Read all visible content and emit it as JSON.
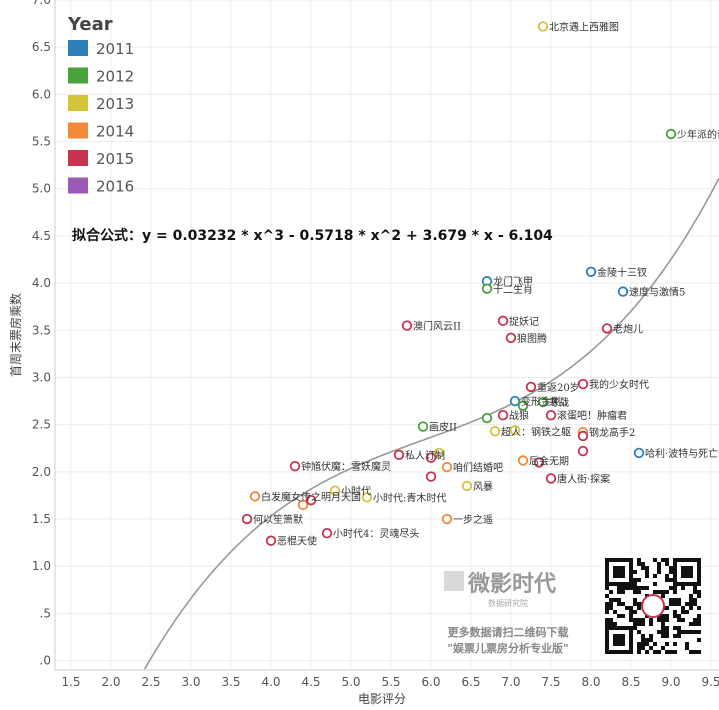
{
  "chart_data": {
    "type": "scatter",
    "xlabel": "电影评分",
    "ylabel": "首周末票房乘数",
    "xlim": [
      1.3,
      9.6
    ],
    "ylim": [
      -0.1,
      7.0
    ],
    "x_ticks": [
      "1.5",
      "2.0",
      "2.5",
      "3.0",
      "3.5",
      "4.0",
      "4.5",
      "5.0",
      "5.5",
      "6.0",
      "6.5",
      "7.0",
      "7.5",
      "8.0",
      "8.5",
      "9.0",
      "9.5"
    ],
    "y_ticks": [
      ".0",
      ".5",
      "1.0",
      "1.5",
      "2.0",
      "2.5",
      "3.0",
      "3.5",
      "4.0",
      "4.5",
      "5.0",
      "5.5",
      "6.0",
      "6.5",
      "7.0"
    ],
    "grid": true,
    "legend": {
      "title": "Year",
      "placement": "top-left",
      "entries": [
        {
          "name": "2011",
          "color": "#2e7fb8"
        },
        {
          "name": "2012",
          "color": "#4aa23d"
        },
        {
          "name": "2013",
          "color": "#d4c43a"
        },
        {
          "name": "2014",
          "color": "#f08a3a"
        },
        {
          "name": "2015",
          "color": "#c8344f"
        },
        {
          "name": "2016",
          "color": "#9b59b6"
        }
      ]
    },
    "annotation": "拟合公式：y = 0.03232 * x^3 - 0.5718 * x^2 + 3.679 * x - 6.104",
    "trendline": {
      "coefficients": [
        0.03232,
        -0.5718,
        3.679,
        -6.104
      ],
      "color": "#999999"
    },
    "series": [
      {
        "name": "2011",
        "points": [
          {
            "x": 6.7,
            "y": 4.02,
            "label": "龙门飞甲"
          },
          {
            "x": 8.0,
            "y": 4.12,
            "label": "金陵十三钗"
          },
          {
            "x": 8.4,
            "y": 3.91,
            "label": "速度与激情5"
          },
          {
            "x": 8.6,
            "y": 2.2,
            "label": "哈利·波特与死亡圣器（下）"
          },
          {
            "x": 7.05,
            "y": 2.75,
            "label": "变形金刚3"
          }
        ]
      },
      {
        "name": "2012",
        "points": [
          {
            "x": 9.0,
            "y": 5.58,
            "label": "少年派的奇幻漂流"
          },
          {
            "x": 6.7,
            "y": 3.94,
            "label": "十二生肖"
          },
          {
            "x": 5.9,
            "y": 2.48,
            "label": "画皮II"
          },
          {
            "x": 6.7,
            "y": 2.57,
            "label": ""
          },
          {
            "x": 7.15,
            "y": 2.7,
            "label": ""
          },
          {
            "x": 7.4,
            "y": 2.74,
            "label": "寒战"
          }
        ]
      },
      {
        "name": "2013",
        "points": [
          {
            "x": 7.4,
            "y": 6.72,
            "label": "北京遇上西雅图"
          },
          {
            "x": 4.8,
            "y": 1.8,
            "label": "小时代"
          },
          {
            "x": 5.2,
            "y": 1.73,
            "label": "小时代:青木时代"
          },
          {
            "x": 6.1,
            "y": 2.2,
            "label": ""
          },
          {
            "x": 6.45,
            "y": 1.85,
            "label": "风暴"
          },
          {
            "x": 6.8,
            "y": 2.43,
            "label": "超人：钢铁之躯"
          },
          {
            "x": 7.05,
            "y": 2.44,
            "label": ""
          }
        ]
      },
      {
        "name": "2014",
        "points": [
          {
            "x": 3.8,
            "y": 1.74,
            "label": "白发魔女传之明月天国"
          },
          {
            "x": 4.4,
            "y": 1.65,
            "label": ""
          },
          {
            "x": 6.2,
            "y": 2.05,
            "label": "咱们结婚吧"
          },
          {
            "x": 6.2,
            "y": 1.5,
            "label": "一步之遥"
          },
          {
            "x": 7.15,
            "y": 2.12,
            "label": "后会无期"
          },
          {
            "x": 7.9,
            "y": 2.42,
            "label": "钢龙高手2"
          }
        ]
      },
      {
        "name": "2015",
        "points": [
          {
            "x": 5.7,
            "y": 3.55,
            "label": "澳门风云II"
          },
          {
            "x": 6.9,
            "y": 3.6,
            "label": "捉妖记"
          },
          {
            "x": 7.0,
            "y": 3.42,
            "label": "狼图腾"
          },
          {
            "x": 8.2,
            "y": 3.52,
            "label": "老炮儿"
          },
          {
            "x": 7.9,
            "y": 2.93,
            "label": "我的少女时代"
          },
          {
            "x": 7.25,
            "y": 2.9,
            "label": "重返20岁"
          },
          {
            "x": 6.9,
            "y": 2.6,
            "label": "战狼"
          },
          {
            "x": 7.5,
            "y": 2.6,
            "label": "滚蛋吧！肿瘤君"
          },
          {
            "x": 5.6,
            "y": 2.18,
            "label": "私人订制"
          },
          {
            "x": 4.3,
            "y": 2.06,
            "label": "钟馗伏魔：雪妖魔灵"
          },
          {
            "x": 3.7,
            "y": 1.5,
            "label": "何以笙箫默"
          },
          {
            "x": 4.0,
            "y": 1.27,
            "label": "恶棍天使"
          },
          {
            "x": 4.7,
            "y": 1.35,
            "label": "小时代4：灵魂尽头"
          },
          {
            "x": 4.5,
            "y": 1.7,
            "label": ""
          },
          {
            "x": 6.0,
            "y": 2.15,
            "label": ""
          },
          {
            "x": 6.0,
            "y": 1.95,
            "label": ""
          },
          {
            "x": 7.35,
            "y": 2.1,
            "label": ""
          },
          {
            "x": 7.5,
            "y": 1.93,
            "label": "唐人街·探案"
          },
          {
            "x": 7.9,
            "y": 2.38,
            "label": ""
          },
          {
            "x": 7.9,
            "y": 2.22,
            "label": ""
          }
        ]
      },
      {
        "name": "2016",
        "points": []
      }
    ]
  },
  "watermark": {
    "brand": "微影时代",
    "subtitle": "数据研究院",
    "line1": "更多数据请扫二维码下载",
    "line2": "\"娱票儿票房分析专业版\""
  }
}
